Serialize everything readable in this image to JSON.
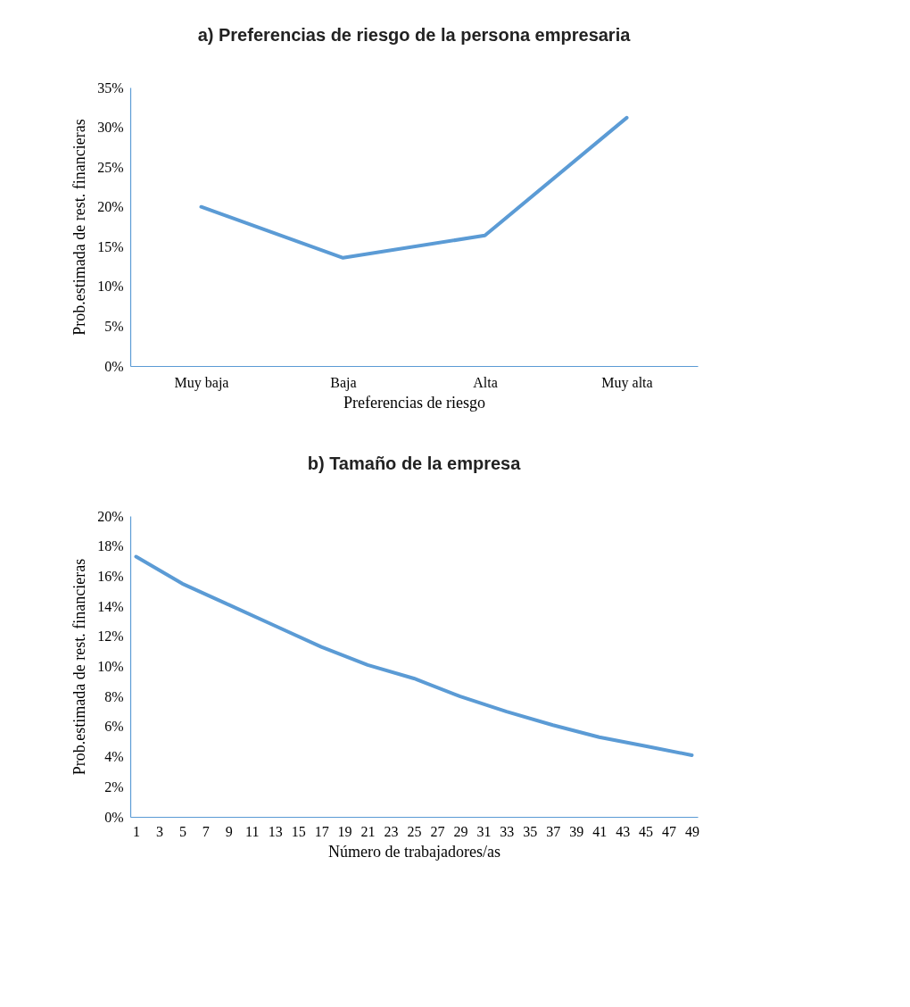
{
  "chart_data": [
    {
      "type": "line",
      "title": "a) Preferencias de riesgo de la persona empresaria",
      "xlabel": "Preferencias de riesgo",
      "ylabel": "Prob.estimada de rest. financieras",
      "categories": [
        "Muy baja",
        "Baja",
        "Alta",
        "Muy alta"
      ],
      "series": [
        {
          "color": "#5b9bd5",
          "values": [
            20.0,
            13.6,
            16.4,
            31.2
          ]
        }
      ],
      "ylim": [
        0,
        35
      ],
      "yticks": [
        {
          "value": 0,
          "label": "0%"
        },
        {
          "value": 5,
          "label": "5%"
        },
        {
          "value": 10,
          "label": "10%"
        },
        {
          "value": 15,
          "label": "15%"
        },
        {
          "value": 20,
          "label": "20%"
        },
        {
          "value": 25,
          "label": "25%"
        },
        {
          "value": 30,
          "label": "30%"
        },
        {
          "value": 35,
          "label": "35%"
        }
      ],
      "grid": false,
      "marker": "none",
      "line_style": "solid"
    },
    {
      "type": "line",
      "title": "b) Tamaño de la empresa",
      "xlabel": "Número de trabajadores/as",
      "ylabel": "Prob.estimada de rest. financieras",
      "x": [
        1,
        5,
        9,
        13,
        17,
        21,
        25,
        29,
        33,
        37,
        41,
        45,
        49
      ],
      "series": [
        {
          "color": "#5b9bd5",
          "values": [
            17.3,
            15.5,
            14.1,
            12.7,
            11.3,
            10.1,
            9.2,
            8.0,
            7.0,
            6.1,
            5.3,
            4.7,
            4.1
          ]
        }
      ],
      "xlim": [
        0.5,
        49.5
      ],
      "xticks": [
        1,
        3,
        5,
        7,
        9,
        11,
        13,
        15,
        17,
        19,
        21,
        23,
        25,
        27,
        29,
        31,
        33,
        35,
        37,
        39,
        41,
        43,
        45,
        47,
        49
      ],
      "ylim": [
        0,
        20
      ],
      "yticks": [
        {
          "value": 0,
          "label": "0%"
        },
        {
          "value": 2,
          "label": "2%"
        },
        {
          "value": 4,
          "label": "4%"
        },
        {
          "value": 6,
          "label": "6%"
        },
        {
          "value": 8,
          "label": "8%"
        },
        {
          "value": 10,
          "label": "10%"
        },
        {
          "value": 12,
          "label": "12%"
        },
        {
          "value": 14,
          "label": "14%"
        },
        {
          "value": 16,
          "label": "16%"
        },
        {
          "value": 18,
          "label": "18%"
        },
        {
          "value": 20,
          "label": "20%"
        }
      ],
      "grid": false,
      "marker": "none",
      "line_style": "solid"
    }
  ]
}
